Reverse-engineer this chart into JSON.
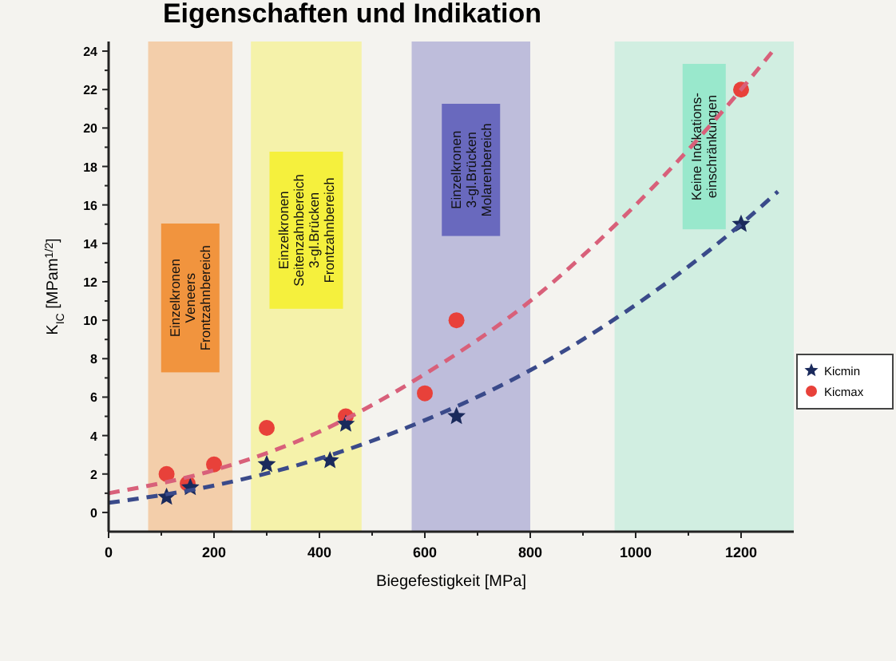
{
  "chart_data": {
    "type": "scatter",
    "title": "Eigenschaften und Indikation",
    "xlabel": "Biegefestigkeit [MPa]",
    "ylabel": "K$_{IC}$ [MPam$^{1/2}$]",
    "xlim": [
      0,
      1300
    ],
    "xticks": [
      0,
      {
        "value": 100,
        "label": null
      },
      200,
      {
        "value": 300,
        "label": null
      },
      400,
      {
        "value": 500,
        "label": null
      },
      600,
      {
        "value": 700,
        "label": null
      },
      800,
      {
        "value": 900,
        "label": null
      },
      1000,
      {
        "value": 1100,
        "label": null
      },
      1200
    ],
    "ylim": [
      -1,
      24.5
    ],
    "yticks": [
      0,
      {
        "value": 1,
        "label": null
      },
      2,
      {
        "value": 3,
        "label": null
      },
      4,
      {
        "value": 5,
        "label": null
      },
      6,
      {
        "value": 7,
        "label": null
      },
      8,
      {
        "value": 9,
        "label": null
      },
      10,
      {
        "value": 11,
        "label": null
      },
      12,
      {
        "value": 13,
        "label": null
      },
      14,
      {
        "value": 15,
        "label": null
      },
      16,
      {
        "value": 17,
        "label": null
      },
      18,
      {
        "value": 19,
        "label": null
      },
      20,
      {
        "value": 21,
        "label": null
      },
      22,
      {
        "value": 23,
        "label": null
      },
      24
    ],
    "grid": false,
    "legend": "right",
    "bands": [
      {
        "axis": "x",
        "from": 75,
        "to": 235,
        "color": "#f08a2c"
      },
      {
        "axis": "x",
        "from": 270,
        "to": 480,
        "color": "#f5f02a"
      },
      {
        "axis": "x",
        "from": 575,
        "to": 800,
        "color": "#5a5ab8"
      },
      {
        "axis": "x",
        "from": 960,
        "to": 1300,
        "color": "#8fe6c8"
      }
    ],
    "annotations": [
      "Einzelkronen\nVeneers\nFrontzahnbereich",
      "Einzelkronen\nSeitenzahnbereich\n3-gl.Brücken\nFrontzahnbereich",
      "Einzelkronen\n3-gl.Brücken\nMolarenbereich",
      "Keine Indikations-\neinschränkungen"
    ],
    "series": [
      {
        "type": "line",
        "color": "#3a4a8a",
        "line_style": "dashed",
        "marker": "none",
        "x": [
          0,
          200,
          400,
          600,
          800,
          1000,
          1200,
          1270
        ],
        "values": [
          0.5,
          1.4,
          2.8,
          4.8,
          7.4,
          10.8,
          15.0,
          16.7
        ]
      },
      {
        "type": "line",
        "color": "#d8607a",
        "line_style": "dashed",
        "marker": "none",
        "x": [
          0,
          200,
          400,
          600,
          800,
          1000,
          1200,
          1260
        ],
        "values": [
          1.0,
          2.2,
          4.2,
          7.2,
          11.0,
          16.0,
          22.0,
          24.0
        ]
      },
      {
        "name": "Kicmin",
        "marker": "star",
        "color": "#1a2a5c",
        "x": [
          110,
          155,
          300,
          420,
          450,
          660,
          1200
        ],
        "values": [
          0.8,
          1.3,
          2.5,
          2.7,
          4.6,
          5.0,
          15.0
        ]
      },
      {
        "name": "Kicmax",
        "marker": "circle",
        "color": "#e8413a",
        "x": [
          110,
          150,
          200,
          300,
          450,
          600,
          660,
          1200
        ],
        "values": [
          2.0,
          1.5,
          2.5,
          4.4,
          5.0,
          6.2,
          10.0,
          22.0
        ]
      }
    ]
  }
}
